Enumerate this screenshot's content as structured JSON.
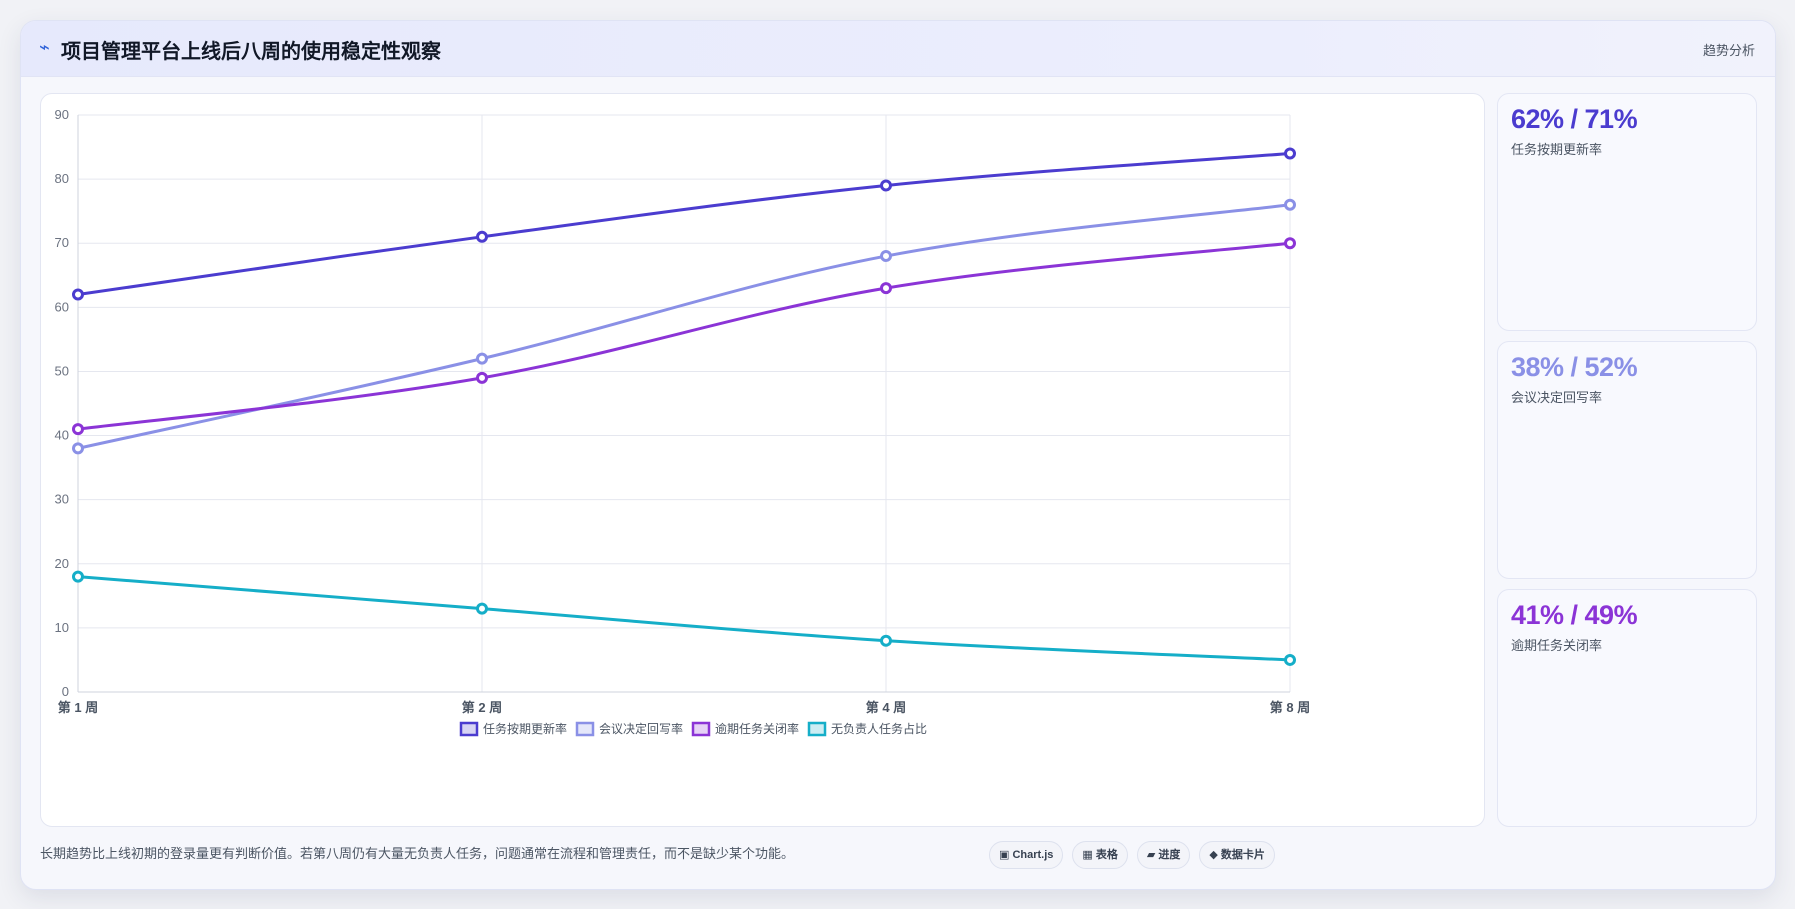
{
  "header": {
    "icon": "trend-icon",
    "title": "项目管理平台上线后八周的使用稳定性观察",
    "tag": "趋势分析"
  },
  "chart_data": {
    "type": "line",
    "categories": [
      "第 1 周",
      "第 2 周",
      "第 4 周",
      "第 8 周"
    ],
    "ylim": [
      0,
      90
    ],
    "yticks": [
      0,
      10,
      20,
      30,
      40,
      50,
      60,
      70,
      80,
      90
    ],
    "grid": true,
    "legend_position": "bottom",
    "series": [
      {
        "name": "任务按期更新率",
        "color": "#4b3ccf",
        "values": [
          62,
          71,
          79,
          84
        ]
      },
      {
        "name": "会议决定回写率",
        "color": "#8a90e6",
        "values": [
          38,
          52,
          68,
          76
        ]
      },
      {
        "name": "逾期任务关闭率",
        "color": "#8b34d6",
        "values": [
          41,
          49,
          63,
          70
        ]
      },
      {
        "name": "无负责人任务占比",
        "color": "#15aec8",
        "values": [
          18,
          13,
          8,
          5
        ]
      }
    ]
  },
  "stats": [
    {
      "value": "62% / 71%",
      "label": "任务按期更新率",
      "color": "#4b3ccf"
    },
    {
      "value": "38% / 52%",
      "label": "会议决定回写率",
      "color": "#8a90e6"
    },
    {
      "value": "41% / 49%",
      "label": "逾期任务关闭率",
      "color": "#8b34d6"
    }
  ],
  "footnote": "长期趋势比上线初期的登录量更有判断价值。若第八周仍有大量无负责人任务，问题通常在流程和管理责任，而不是缺少某个功能。",
  "chips": [
    {
      "label": "▣ Chart.js"
    },
    {
      "label": "▦ 表格"
    },
    {
      "label": "▰ 进度"
    },
    {
      "label": "◆ 数据卡片"
    }
  ]
}
